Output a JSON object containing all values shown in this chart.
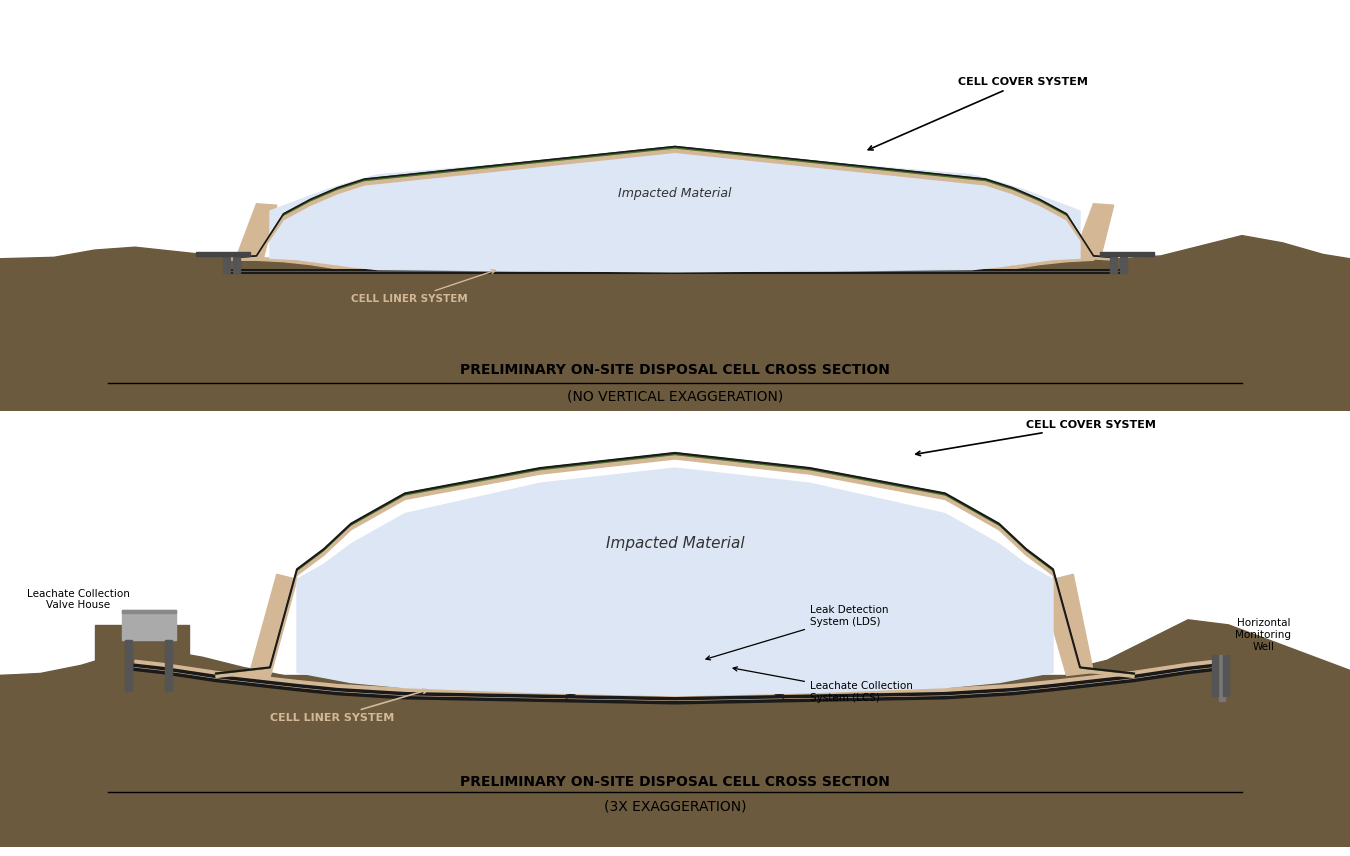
{
  "bg_color": "#ffffff",
  "ground_color": "#6b5a3e",
  "liner_color": "#d4b896",
  "impacted_color": "#dce6f5",
  "cover_green": "#4a6e2a",
  "line_black": "#1a1a1a",
  "text_color": "#1a1a1a",
  "title1_line1": "PRELIMINARY ON-SITE DISPOSAL CELL CROSS SECTION",
  "title1_line2": "(NO VERTICAL EXAGGERATION)",
  "title2_line1": "PRELIMINARY ON-SITE DISPOSAL CELL CROSS SECTION",
  "title2_line2": "(3X EXAGGERATION)",
  "panel1_label_impacted": "Impacted Material",
  "panel1_label_liner": "CELL LINER SYSTEM",
  "panel1_label_cover": "CELL COVER SYSTEM",
  "panel2_label_impacted": "Impacted Material",
  "panel2_label_liner": "CELL LINER SYSTEM",
  "panel2_label_cover": "CELL COVER SYSTEM",
  "panel2_label_leachate_house": "Leachate Collection\nValve House",
  "panel2_label_lds": "Leak Detection\nSystem (LDS)",
  "panel2_label_lcs": "Leachate Collection\nSystem (LCS)",
  "panel2_label_well": "Horizontal\nMonitoring\nWell"
}
